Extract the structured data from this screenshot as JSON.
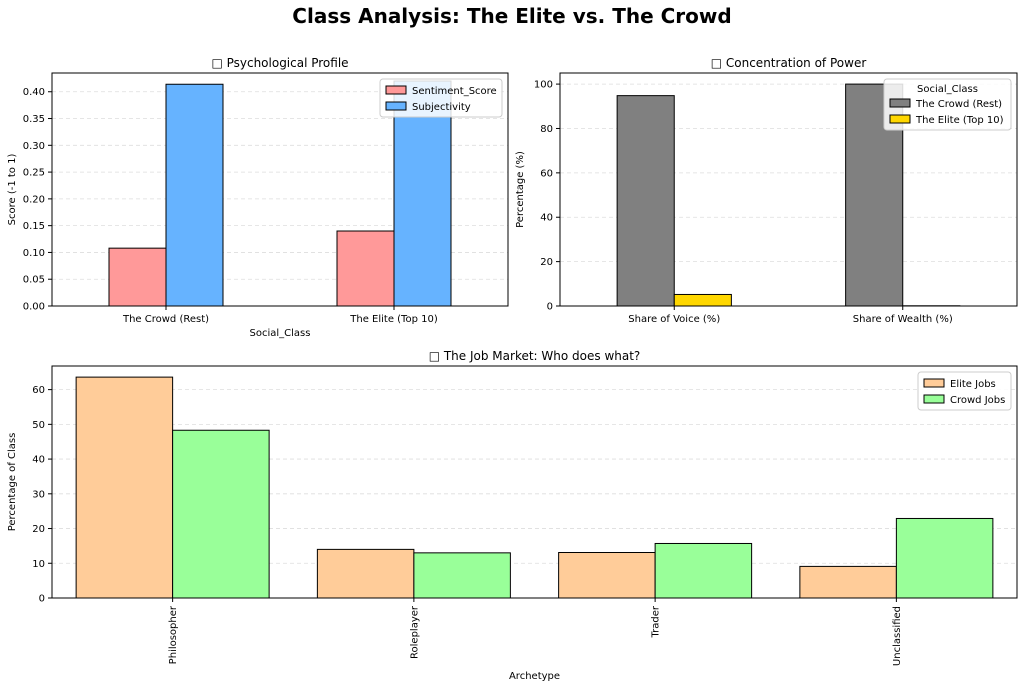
{
  "figure_title": "Class Analysis: The Elite vs. The Crowd",
  "colors": {
    "sentiment": "#ff9999",
    "subjectivity": "#66b3ff",
    "crowd": "#808080",
    "elite": "#ffd700",
    "elite_jobs": "#ffcc99",
    "crowd_jobs": "#99ff99",
    "edge": "#000000",
    "grid": "#dddddd"
  },
  "chart_data": [
    {
      "id": "psych",
      "type": "bar",
      "title": "□ Psychological Profile",
      "xlabel": "Social_Class",
      "ylabel": "Score (-1 to 1)",
      "categories": [
        "The Crowd (Rest)",
        "The Elite (Top 10)"
      ],
      "series": [
        {
          "name": "Sentiment_Score",
          "values": [
            0.108,
            0.14
          ],
          "color_key": "sentiment"
        },
        {
          "name": "Subjectivity",
          "values": [
            0.414,
            0.42
          ],
          "color_key": "subjectivity"
        }
      ],
      "ylim": [
        0,
        0.435
      ],
      "yticks": [
        0,
        0.05,
        0.1,
        0.15,
        0.2,
        0.25,
        0.3,
        0.35,
        0.4
      ],
      "ytick_labels": [
        "0.00",
        "0.05",
        "0.10",
        "0.15",
        "0.20",
        "0.25",
        "0.30",
        "0.35",
        "0.40"
      ],
      "legend_title": "",
      "legend_position": "top-right",
      "grid": "y-dashed",
      "xtick_rotation": 0
    },
    {
      "id": "power",
      "type": "bar",
      "title": "□ Concentration of Power",
      "xlabel": "",
      "ylabel": "Percentage (%)",
      "categories": [
        "Share of Voice (%)",
        "Share of Wealth (%)"
      ],
      "series": [
        {
          "name": "The Crowd (Rest)",
          "values": [
            94.8,
            100.0
          ],
          "color_key": "crowd"
        },
        {
          "name": "The Elite (Top 10)",
          "values": [
            5.2,
            0.1
          ],
          "color_key": "elite"
        }
      ],
      "ylim": [
        0,
        105
      ],
      "yticks": [
        0,
        20,
        40,
        60,
        80,
        100
      ],
      "ytick_labels": [
        "0",
        "20",
        "40",
        "60",
        "80",
        "100"
      ],
      "legend_title": "Social_Class",
      "legend_position": "top-right",
      "grid": "y-dashed",
      "xtick_rotation": 0
    },
    {
      "id": "jobs",
      "type": "bar",
      "title": "□ The Job Market: Who does what?",
      "xlabel": "Archetype",
      "ylabel": "Percentage of Class",
      "categories": [
        "Philosopher",
        "Roleplayer",
        "Trader",
        "Unclassified"
      ],
      "series": [
        {
          "name": "Elite Jobs",
          "values": [
            63.6,
            14.0,
            13.1,
            9.1
          ],
          "color_key": "elite_jobs"
        },
        {
          "name": "Crowd Jobs",
          "values": [
            48.3,
            13.0,
            15.7,
            22.9
          ],
          "color_key": "crowd_jobs"
        }
      ],
      "ylim": [
        0,
        66.8
      ],
      "yticks": [
        0,
        10,
        20,
        30,
        40,
        50,
        60
      ],
      "ytick_labels": [
        "0",
        "10",
        "20",
        "30",
        "40",
        "50",
        "60"
      ],
      "legend_title": "",
      "legend_position": "top-right",
      "grid": "y-dashed",
      "xtick_rotation": 90
    }
  ]
}
